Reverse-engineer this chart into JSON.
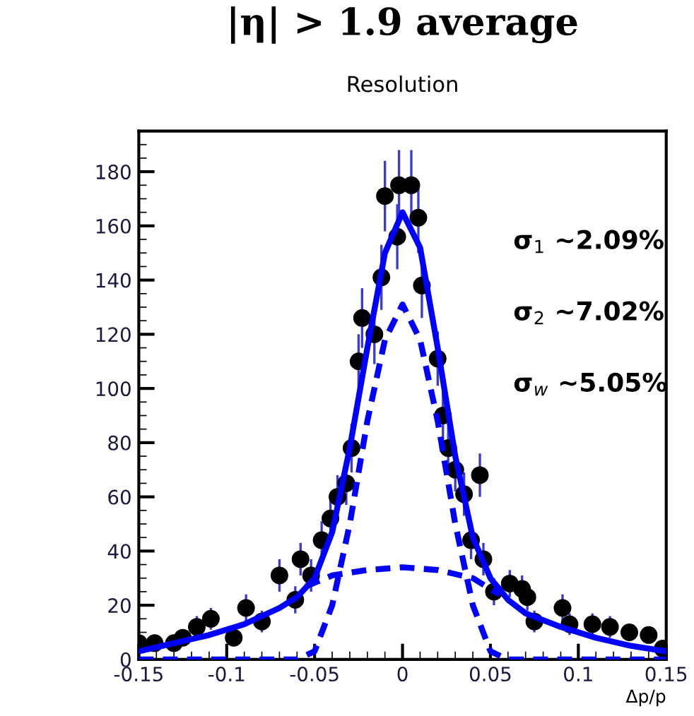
{
  "chart_data": {
    "type": "scatter",
    "title": "|η| > 1.9 average",
    "subtitle": "Resolution",
    "xlabel": "Δp/p",
    "xlim": [
      -0.15,
      0.15
    ],
    "xticks": [
      -0.15,
      -0.1,
      -0.05,
      0,
      0.05,
      0.1,
      0.15
    ],
    "ylim": [
      0,
      195
    ],
    "yticks": [
      0,
      20,
      40,
      60,
      80,
      100,
      120,
      140,
      160,
      180
    ],
    "grid": false,
    "legend": false,
    "annotations": [
      "σ$_{1}$ ~2.09%",
      "σ$_{2}$ ~7.02%",
      "σ$_{w}$ ~5.05%"
    ],
    "series": [
      {
        "marker": "circle",
        "color": "#000000",
        "x": [
          -0.15,
          -0.141,
          -0.13,
          -0.125,
          -0.117,
          -0.109,
          -0.096,
          -0.089,
          -0.08,
          -0.07,
          -0.061,
          -0.058,
          -0.052,
          -0.046,
          -0.041,
          -0.037,
          -0.032,
          -0.029,
          -0.025,
          -0.023,
          -0.016,
          -0.012,
          -0.01,
          -0.003,
          -0.002,
          0.005,
          0.009,
          0.011,
          0.02,
          0.023,
          0.026,
          0.03,
          0.035,
          0.039,
          0.044,
          0.046,
          0.052,
          0.061,
          0.068,
          0.071,
          0.075,
          0.091,
          0.095,
          0.108,
          0.118,
          0.129,
          0.14,
          0.148
        ],
        "values": [
          6,
          6,
          6,
          8,
          12,
          15,
          8,
          19,
          14,
          31,
          22,
          37,
          31,
          44,
          52,
          60,
          65,
          78,
          110,
          126,
          120,
          141,
          171,
          156,
          175,
          175,
          163,
          138,
          111,
          90,
          78,
          70,
          61,
          44,
          68,
          37,
          25,
          28,
          26,
          23,
          14,
          19,
          13,
          13,
          12,
          10,
          9,
          4
        ],
        "errors": [
          null,
          3,
          null,
          3,
          4,
          4,
          3,
          5,
          4,
          6,
          5,
          6,
          6,
          7,
          7,
          8,
          8,
          9,
          10,
          11,
          11,
          12,
          13,
          12,
          13,
          13,
          13,
          12,
          10,
          9,
          9,
          8,
          8,
          7,
          8,
          6,
          5,
          5,
          5,
          5,
          4,
          5,
          4,
          4,
          4,
          3,
          3,
          null
        ]
      },
      {
        "type": "line",
        "line_style": "solid",
        "color": "#0000ff",
        "x": [
          -0.15,
          -0.13,
          -0.11,
          -0.09,
          -0.07,
          -0.06,
          -0.05,
          -0.04,
          -0.03,
          -0.02,
          -0.01,
          0,
          0.01,
          0.02,
          0.03,
          0.04,
          0.05,
          0.06,
          0.07,
          0.09,
          0.11,
          0.13,
          0.15
        ],
        "values": [
          3,
          6,
          9,
          13,
          19,
          23,
          30,
          47,
          78,
          115,
          150,
          165,
          152,
          115,
          75,
          45,
          30,
          22,
          17,
          12,
          8,
          5,
          3
        ]
      },
      {
        "type": "line",
        "line_style": "dashed",
        "color": "#0000ff",
        "x": [
          -0.15,
          -0.07,
          -0.06,
          -0.05,
          -0.04,
          -0.03,
          -0.02,
          -0.01,
          0,
          0.01,
          0.02,
          0.03,
          0.04,
          0.05,
          0.06,
          0.07,
          0.15
        ],
        "values": [
          0,
          0,
          0,
          3,
          20,
          50,
          88,
          118,
          131,
          118,
          88,
          50,
          20,
          3,
          0,
          0,
          0
        ]
      },
      {
        "type": "line",
        "line_style": "dashed",
        "color": "#0000ff",
        "x": [
          -0.055,
          -0.04,
          -0.02,
          0,
          0.02,
          0.04,
          0.055
        ],
        "values": [
          27,
          31,
          33,
          34,
          33,
          30,
          24
        ]
      }
    ]
  }
}
